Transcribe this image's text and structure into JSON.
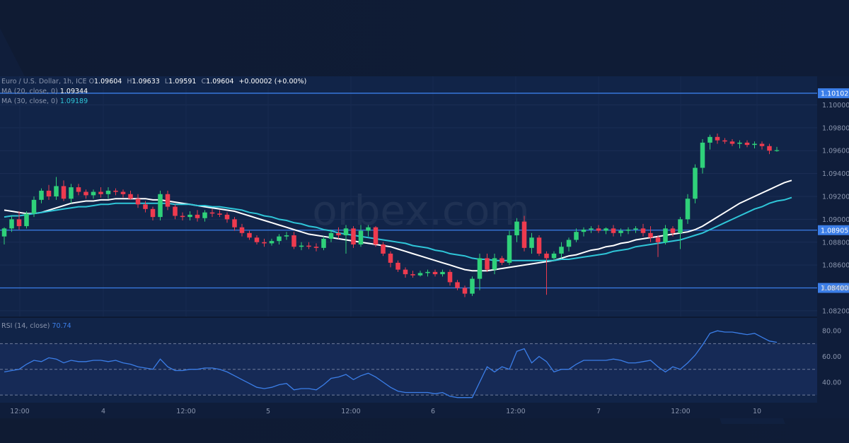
{
  "brand": {
    "logo_text": "orbex",
    "watermark_text": "orbex.com"
  },
  "legend": {
    "symbol": "Euro / U.S. Dollar, 1h, ICE",
    "ohlc": [
      {
        "key": "O",
        "value": "1.09604"
      },
      {
        "key": "H",
        "value": "1.09633"
      },
      {
        "key": "L",
        "value": "1.09591"
      },
      {
        "key": "C",
        "value": "1.09604"
      }
    ],
    "change": "+0.00002 (+0.00%)",
    "ma20_label": "MA (20, close, 0)",
    "ma20_value": "1.09344",
    "ma30_label": "MA (30, close, 0)",
    "ma30_value": "1.09189",
    "rsi_label": "RSI (14, close)",
    "rsi_value": "70.74"
  },
  "colors": {
    "background": "#0f1b33",
    "pane": "#112448",
    "up_candle": "#2fd17a",
    "down_candle": "#ee3b4f",
    "ma20": "#ffffff",
    "ma30": "#2fc6d8",
    "level_line": "#3b7ee8",
    "rsi_line": "#3b7ee8"
  },
  "chart_data": [
    {
      "type": "candlestick",
      "title": "Euro / U.S. Dollar, 1h, ICE",
      "x_tick_labels": [
        "12:00",
        "4",
        "12:00",
        "5",
        "12:00",
        "6",
        "12:00",
        "7",
        "12:00",
        "10"
      ],
      "y_tick_labels": [
        "1.10000",
        "1.09800",
        "1.09600",
        "1.09400",
        "1.09200",
        "1.09000",
        "1.08800",
        "1.08600",
        "1.08400",
        "1.08200"
      ],
      "ylim": [
        1.0815,
        1.1025
      ],
      "horizontal_levels": [
        {
          "value": 1.10102,
          "label": "1.10102"
        },
        {
          "value": 1.08905,
          "label": "1.08905"
        },
        {
          "value": 1.084,
          "label": "1.08400"
        }
      ],
      "candles": [
        [
          1.0885,
          1.0893,
          1.0878,
          1.0892
        ],
        [
          1.0892,
          1.0903,
          1.0889,
          1.09
        ],
        [
          1.09,
          1.0907,
          1.0891,
          1.0894
        ],
        [
          1.0894,
          1.0907,
          1.0892,
          1.0905
        ],
        [
          1.0905,
          1.092,
          1.0902,
          1.0917
        ],
        [
          1.0917,
          1.0927,
          1.0914,
          1.0925
        ],
        [
          1.0925,
          1.093,
          1.0917,
          1.092
        ],
        [
          1.092,
          1.0937,
          1.0917,
          1.0929
        ],
        [
          1.0929,
          1.0934,
          1.0916,
          1.0918
        ],
        [
          1.0918,
          1.0931,
          1.0914,
          1.0928
        ],
        [
          1.0928,
          1.0931,
          1.0921,
          1.0924
        ],
        [
          1.0924,
          1.0926,
          1.0918,
          1.0921
        ],
        [
          1.0921,
          1.0926,
          1.0918,
          1.0924
        ],
        [
          1.0924,
          1.0928,
          1.0919,
          1.0922
        ],
        [
          1.0922,
          1.0928,
          1.0918,
          1.0925
        ],
        [
          1.0925,
          1.0927,
          1.0921,
          1.0924
        ],
        [
          1.0924,
          1.0926,
          1.0919,
          1.0922
        ],
        [
          1.0922,
          1.0925,
          1.0917,
          1.0918
        ],
        [
          1.0918,
          1.0922,
          1.091,
          1.0913
        ],
        [
          1.0913,
          1.0916,
          1.0906,
          1.0909
        ],
        [
          1.0909,
          1.0911,
          1.0899,
          1.0902
        ],
        [
          1.0902,
          1.0925,
          1.0899,
          1.0922
        ],
        [
          1.0922,
          1.0925,
          1.0908,
          1.0911
        ],
        [
          1.0911,
          1.0913,
          1.09,
          1.0903
        ],
        [
          1.0903,
          1.0906,
          1.0899,
          1.0902
        ],
        [
          1.0902,
          1.0907,
          1.0899,
          1.0904
        ],
        [
          1.0904,
          1.0908,
          1.0898,
          1.0901
        ],
        [
          1.0901,
          1.0908,
          1.0898,
          1.0906
        ],
        [
          1.0906,
          1.0909,
          1.0902,
          1.0905
        ],
        [
          1.0905,
          1.0908,
          1.0902,
          1.0904
        ],
        [
          1.0904,
          1.0906,
          1.0897,
          1.09
        ],
        [
          1.09,
          1.0902,
          1.089,
          1.0893
        ],
        [
          1.0893,
          1.0896,
          1.0885,
          1.0888
        ],
        [
          1.0888,
          1.089,
          1.0882,
          1.0884
        ],
        [
          1.0884,
          1.0886,
          1.0878,
          1.088
        ],
        [
          1.088,
          1.0883,
          1.0876,
          1.0879
        ],
        [
          1.0879,
          1.0883,
          1.0877,
          1.0881
        ],
        [
          1.0881,
          1.0887,
          1.0878,
          1.0885
        ],
        [
          1.0885,
          1.0889,
          1.0882,
          1.0886
        ],
        [
          1.0886,
          1.0889,
          1.0874,
          1.0876
        ],
        [
          1.0876,
          1.088,
          1.0873,
          1.0877
        ],
        [
          1.0877,
          1.088,
          1.0874,
          1.0876
        ],
        [
          1.0876,
          1.0879,
          1.0872,
          1.0875
        ],
        [
          1.0875,
          1.0885,
          1.0873,
          1.0883
        ],
        [
          1.0883,
          1.0891,
          1.088,
          1.0888
        ],
        [
          1.0888,
          1.0893,
          1.0883,
          1.0886
        ],
        [
          1.0886,
          1.0895,
          1.087,
          1.0892
        ],
        [
          1.0892,
          1.0894,
          1.0875,
          1.0878
        ],
        [
          1.0878,
          1.0895,
          1.0876,
          1.089
        ],
        [
          1.089,
          1.0895,
          1.0885,
          1.0893
        ],
        [
          1.0893,
          1.0894,
          1.0876,
          1.0878
        ],
        [
          1.0878,
          1.088,
          1.0868,
          1.087
        ],
        [
          1.087,
          1.0872,
          1.0858,
          1.0862
        ],
        [
          1.0862,
          1.0864,
          1.0854,
          1.0856
        ],
        [
          1.0856,
          1.0858,
          1.0849,
          1.0852
        ],
        [
          1.0852,
          1.0855,
          1.0849,
          1.0851
        ],
        [
          1.0851,
          1.0855,
          1.085,
          1.0853
        ],
        [
          1.0853,
          1.0856,
          1.085,
          1.0854
        ],
        [
          1.0854,
          1.0856,
          1.085,
          1.0852
        ],
        [
          1.0852,
          1.0856,
          1.085,
          1.0854
        ],
        [
          1.0854,
          1.0856,
          1.0842,
          1.0845
        ],
        [
          1.0845,
          1.0847,
          1.0838,
          1.084
        ],
        [
          1.084,
          1.0842,
          1.0832,
          1.0835
        ],
        [
          1.0835,
          1.085,
          1.0833,
          1.0848
        ],
        [
          1.0848,
          1.087,
          1.0838,
          1.0866
        ],
        [
          1.0866,
          1.087,
          1.0854,
          1.0856
        ],
        [
          1.0856,
          1.087,
          1.0852,
          1.0866
        ],
        [
          1.0866,
          1.0868,
          1.086,
          1.0862
        ],
        [
          1.0862,
          1.089,
          1.086,
          1.0886
        ],
        [
          1.0886,
          1.0901,
          1.088,
          1.0898
        ],
        [
          1.0898,
          1.0903,
          1.0872,
          1.0875
        ],
        [
          1.0875,
          1.0888,
          1.087,
          1.0884
        ],
        [
          1.0884,
          1.0886,
          1.0868,
          1.087
        ],
        [
          1.087,
          1.0872,
          1.0834,
          1.0866
        ],
        [
          1.0866,
          1.0872,
          1.0864,
          1.087
        ],
        [
          1.087,
          1.088,
          1.0866,
          1.0876
        ],
        [
          1.0876,
          1.0884,
          1.0872,
          1.0882
        ],
        [
          1.0882,
          1.0892,
          1.088,
          1.0889
        ],
        [
          1.0889,
          1.0893,
          1.0885,
          1.0891
        ],
        [
          1.0891,
          1.0894,
          1.0888,
          1.0892
        ],
        [
          1.0892,
          1.0895,
          1.0888,
          1.089
        ],
        [
          1.089,
          1.0893,
          1.0887,
          1.0892
        ],
        [
          1.0892,
          1.0895,
          1.0885,
          1.0888
        ],
        [
          1.0888,
          1.0892,
          1.0885,
          1.089
        ],
        [
          1.089,
          1.0893,
          1.0887,
          1.0891
        ],
        [
          1.0891,
          1.0894,
          1.0888,
          1.0892
        ],
        [
          1.0892,
          1.0896,
          1.0885,
          1.0888
        ],
        [
          1.0888,
          1.0894,
          1.088,
          1.0884
        ],
        [
          1.0884,
          1.0886,
          1.0867,
          1.088
        ],
        [
          1.088,
          1.0895,
          1.0878,
          1.0892
        ],
        [
          1.0892,
          1.0894,
          1.0885,
          1.0888
        ],
        [
          1.0888,
          1.0902,
          1.0874,
          1.09
        ],
        [
          1.09,
          1.0922,
          1.0896,
          1.0918
        ],
        [
          1.0918,
          1.0948,
          1.0914,
          1.0945
        ],
        [
          1.0945,
          1.097,
          1.094,
          1.0967
        ],
        [
          1.0967,
          1.0974,
          1.0961,
          1.0972
        ],
        [
          1.0972,
          1.0975,
          1.0966,
          1.0969
        ],
        [
          1.0969,
          1.0971,
          1.0966,
          1.0968
        ],
        [
          1.0968,
          1.097,
          1.0964,
          1.0966
        ],
        [
          1.0966,
          1.0969,
          1.0962,
          1.0967
        ],
        [
          1.0967,
          1.0969,
          1.0963,
          1.0965
        ],
        [
          1.0965,
          1.0968,
          1.0962,
          1.0966
        ],
        [
          1.0966,
          1.0968,
          1.0961,
          1.0964
        ],
        [
          1.0964,
          1.0966,
          1.0957,
          1.096
        ],
        [
          1.09604,
          1.09633,
          1.09591,
          1.09604
        ]
      ],
      "series": [
        {
          "name": "MA (20, close, 0)",
          "type": "line",
          "values": [
            1.0908,
            1.0907,
            1.0906,
            1.0905,
            1.0905,
            1.0906,
            1.0908,
            1.091,
            1.0912,
            1.0914,
            1.0915,
            1.0916,
            1.0916,
            1.0917,
            1.0917,
            1.0918,
            1.0918,
            1.0918,
            1.0918,
            1.0918,
            1.0917,
            1.0917,
            1.0916,
            1.0915,
            1.0914,
            1.0913,
            1.0912,
            1.0911,
            1.091,
            1.0909,
            1.0908,
            1.0907,
            1.0905,
            1.0903,
            1.0901,
            1.0899,
            1.0897,
            1.0895,
            1.0893,
            1.0891,
            1.0889,
            1.0887,
            1.0886,
            1.0885,
            1.0884,
            1.0883,
            1.0882,
            1.0881,
            1.088,
            1.0879,
            1.0878,
            1.0877,
            1.0876,
            1.0874,
            1.0872,
            1.087,
            1.0868,
            1.0866,
            1.0864,
            1.0862,
            1.086,
            1.0858,
            1.0856,
            1.0855,
            1.0855,
            1.0855,
            1.0856,
            1.0857,
            1.0858,
            1.0859,
            1.086,
            1.0861,
            1.0862,
            1.0863,
            1.0864,
            1.0866,
            1.0868,
            1.0869,
            1.0871,
            1.0873,
            1.0874,
            1.0876,
            1.0877,
            1.0879,
            1.088,
            1.0882,
            1.0883,
            1.0884,
            1.0885,
            1.0886,
            1.0887,
            1.0888,
            1.0889,
            1.0891,
            1.0894,
            1.0898,
            1.0902,
            1.0906,
            1.091,
            1.0914,
            1.0917,
            1.092,
            1.0923,
            1.0926,
            1.0929,
            1.0932,
            1.0934
          ]
        },
        {
          "name": "MA (30, close, 0)",
          "type": "line",
          "values": [
            1.0902,
            1.0903,
            1.0903,
            1.0904,
            1.0905,
            1.0906,
            1.0907,
            1.0908,
            1.0909,
            1.091,
            1.0911,
            1.0911,
            1.0912,
            1.0913,
            1.0913,
            1.0914,
            1.0914,
            1.0914,
            1.0914,
            1.0914,
            1.0914,
            1.0914,
            1.0914,
            1.0913,
            1.0913,
            1.0913,
            1.0912,
            1.0912,
            1.0911,
            1.0911,
            1.091,
            1.0909,
            1.0908,
            1.0906,
            1.0905,
            1.0903,
            1.0902,
            1.09,
            1.0899,
            1.0897,
            1.0896,
            1.0894,
            1.0893,
            1.0891,
            1.089,
            1.0888,
            1.0887,
            1.0886,
            1.0885,
            1.0884,
            1.0883,
            1.0882,
            1.0881,
            1.088,
            1.0879,
            1.0877,
            1.0876,
            1.0875,
            1.0873,
            1.0872,
            1.087,
            1.0869,
            1.0868,
            1.0866,
            1.0865,
            1.0865,
            1.0864,
            1.0864,
            1.0864,
            1.0864,
            1.0864,
            1.0864,
            1.0864,
            1.0864,
            1.0864,
            1.0865,
            1.0865,
            1.0866,
            1.0867,
            1.0868,
            1.0869,
            1.087,
            1.0872,
            1.0873,
            1.0874,
            1.0876,
            1.0877,
            1.0878,
            1.0879,
            1.088,
            1.0881,
            1.0882,
            1.0884,
            1.0886,
            1.0888,
            1.0891,
            1.0894,
            1.0897,
            1.09,
            1.0903,
            1.0906,
            1.0909,
            1.0911,
            1.0914,
            1.0916,
            1.0917,
            1.0919
          ]
        }
      ]
    },
    {
      "type": "line",
      "title": "RSI (14, close)",
      "y_tick_labels": [
        "80.00",
        "60.00",
        "40.00"
      ],
      "ylim": [
        24,
        90
      ],
      "reference_levels": [
        70,
        50,
        30
      ],
      "series": [
        {
          "name": "RSI (14, close)",
          "values": [
            48,
            49,
            50,
            54,
            57,
            56,
            59,
            58,
            55,
            57,
            56,
            56,
            57,
            57,
            56,
            57,
            55,
            54,
            52,
            51,
            50,
            58,
            52,
            49,
            49,
            50,
            50,
            51,
            51,
            50,
            48,
            45,
            42,
            39,
            36,
            35,
            36,
            38,
            39,
            34,
            35,
            35,
            34,
            38,
            43,
            44,
            46,
            42,
            45,
            47,
            44,
            40,
            36,
            33,
            32,
            32,
            32,
            32,
            31,
            32,
            29,
            28,
            28,
            28,
            40,
            52,
            48,
            52,
            50,
            64,
            66,
            55,
            60,
            56,
            48,
            50,
            50,
            54,
            57,
            57,
            57,
            57,
            58,
            57,
            55,
            55,
            56,
            57,
            52,
            48,
            52,
            50,
            55,
            61,
            69,
            78,
            80,
            79,
            79,
            78,
            77,
            78,
            75,
            72,
            71
          ]
        }
      ]
    }
  ]
}
